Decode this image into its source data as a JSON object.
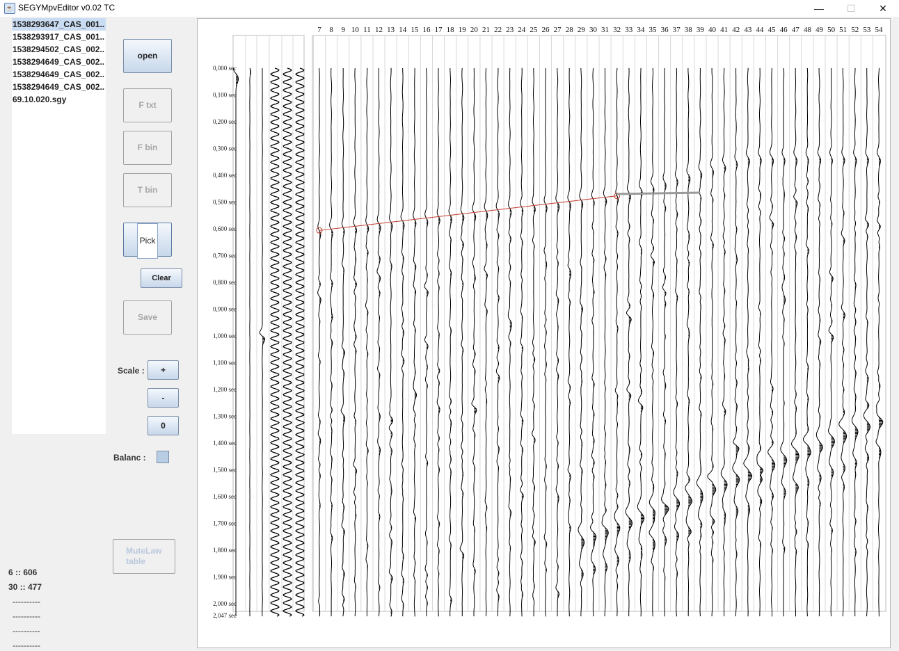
{
  "window": {
    "title": "SEGYMpvEditor v0.02 TC",
    "minimize": "—",
    "maximize": "☐",
    "close": "✕"
  },
  "files": [
    "1538293647_CAS_001..",
    "1538293917_CAS_001..",
    "1538294502_CAS_002..",
    "1538294649_CAS_002..",
    "1538294649_CAS_002..",
    "1538294649_CAS_002..",
    "69.10.020.sgy"
  ],
  "selected_file_index": 0,
  "buttons": {
    "open": "open",
    "f_txt": "F txt",
    "f_bin": "F bin",
    "t_bin": "T bin",
    "pick": "Pick",
    "clear": "Clear",
    "save": "Save",
    "scale_plus": "+",
    "scale_minus": "-",
    "scale_zero": "0",
    "mutelaw_line1": "MuteLaw",
    "mutelaw_line2": "table"
  },
  "labels": {
    "scale": "Scale :",
    "balanc": "Balanc :"
  },
  "balanc_checked": false,
  "status": {
    "line1": "6 :: 606",
    "line2": "30 :: 477",
    "dashes": [
      "----------",
      "----------",
      "----------",
      "----------"
    ]
  },
  "plot": {
    "trace_numbers": [
      "7",
      "8",
      "9",
      "10",
      "11",
      "12",
      "13",
      "14",
      "15",
      "16",
      "17",
      "18",
      "19",
      "20",
      "21",
      "22",
      "23",
      "24",
      "25",
      "26",
      "27",
      "28",
      "29",
      "30",
      "31",
      "32",
      "33",
      "34",
      "35",
      "36",
      "37",
      "38",
      "39",
      "40",
      "41",
      "42",
      "43",
      "44",
      "45",
      "46",
      "47",
      "48",
      "49",
      "50",
      "51",
      "52",
      "53",
      "54"
    ],
    "time_labels": [
      "0,000 sec",
      "0,100 sec",
      "0,200 sec",
      "0,300 sec",
      "0,400 sec",
      "0,500 sec",
      "0,600 sec",
      "0,700 sec",
      "0,800 sec",
      "0,900 sec",
      "1,000 sec",
      "1,100 sec",
      "1,200 sec",
      "1,300 sec",
      "1,400 sec",
      "1,500 sec",
      "1,600 sec",
      "1,700 sec",
      "1,800 sec",
      "1,900 sec",
      "2,000 sec",
      "2,047 sec"
    ],
    "pick_line": {
      "from_trace": "7",
      "from_time": 0.606,
      "to_trace": "32",
      "to_time": 0.477,
      "color": "#c0392b"
    },
    "mute_line": {
      "from_trace": "32",
      "to_trace": "39",
      "time": 0.47,
      "color": "#999999"
    }
  }
}
